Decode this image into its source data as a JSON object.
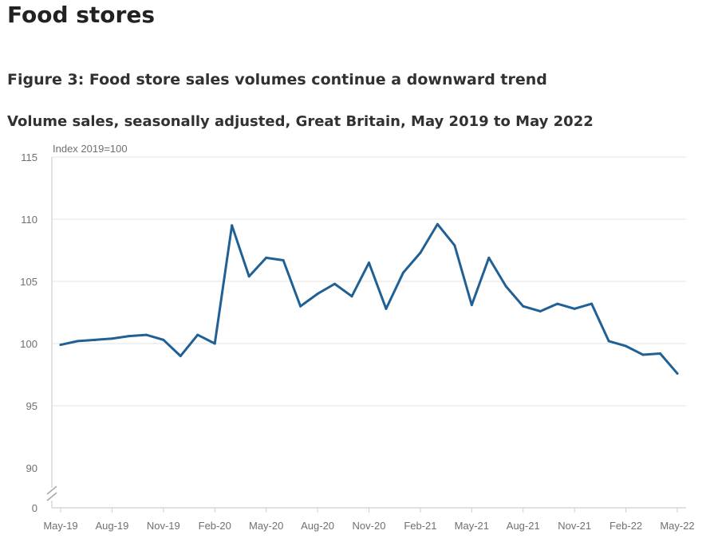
{
  "page": {
    "heading": "Food stores"
  },
  "chart_data": {
    "type": "line",
    "title": "Figure 3: Food store sales volumes continue a downward trend",
    "subtitle": "Volume sales, seasonally adjusted, Great Britain, May 2019 to May 2022",
    "ylabel": "Index 2019=100",
    "ylim": [
      90,
      115
    ],
    "y_axis_origin_label": "0",
    "y_axis_break": true,
    "yticks": [
      90,
      95,
      100,
      105,
      110,
      115
    ],
    "grid": "horizontal",
    "legend": "none",
    "x_tick_labels": [
      "May-19",
      "Aug-19",
      "Nov-19",
      "Feb-20",
      "May-20",
      "Aug-20",
      "Nov-20",
      "Feb-21",
      "May-21",
      "Aug-21",
      "Nov-21",
      "Feb-22",
      "May-22"
    ],
    "x_tick_indices": [
      0,
      3,
      6,
      9,
      12,
      15,
      18,
      21,
      24,
      27,
      30,
      33,
      36
    ],
    "line_color": "#206095",
    "series": [
      {
        "x": [
          "May-19",
          "Jun-19",
          "Jul-19",
          "Aug-19",
          "Sep-19",
          "Oct-19",
          "Nov-19",
          "Dec-19",
          "Jan-20",
          "Feb-20",
          "Mar-20",
          "Apr-20",
          "May-20",
          "Jun-20",
          "Jul-20",
          "Aug-20",
          "Sep-20",
          "Oct-20",
          "Nov-20",
          "Dec-20",
          "Jan-21",
          "Feb-21",
          "Mar-21",
          "Apr-21",
          "May-21",
          "Jun-21",
          "Jul-21",
          "Aug-21",
          "Sep-21",
          "Oct-21",
          "Nov-21",
          "Dec-21",
          "Jan-22",
          "Feb-22",
          "Mar-22",
          "Apr-22",
          "May-22"
        ],
        "values": [
          99.9,
          100.2,
          100.3,
          100.4,
          100.6,
          100.7,
          100.3,
          99.0,
          100.7,
          100.0,
          109.5,
          105.4,
          106.9,
          106.7,
          103.0,
          104.0,
          104.8,
          103.8,
          106.5,
          102.8,
          105.7,
          107.3,
          109.6,
          107.9,
          103.1,
          106.9,
          104.6,
          103.0,
          102.6,
          103.2,
          102.8,
          103.2,
          100.2,
          99.8,
          99.1,
          99.2,
          97.6
        ]
      }
    ]
  }
}
